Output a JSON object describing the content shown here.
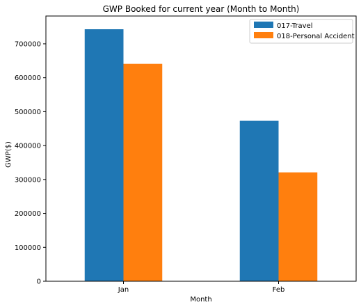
{
  "chart_data": {
    "type": "bar",
    "title": "GWP Booked for current year (Month to Month)",
    "xlabel": "Month",
    "ylabel": "GWP($)",
    "categories": [
      "Jan",
      "Feb"
    ],
    "series": [
      {
        "name": "017-Travel",
        "color": "#1f77b4",
        "values": [
          743000,
          473000
        ]
      },
      {
        "name": "018-Personal Accident",
        "color": "#ff7f0e",
        "values": [
          641000,
          321000
        ]
      }
    ],
    "ylim": [
      0,
      782000
    ],
    "yticks": [
      0,
      100000,
      200000,
      300000,
      400000,
      500000,
      600000,
      700000
    ],
    "grid": false,
    "legend_position": "top-right"
  }
}
